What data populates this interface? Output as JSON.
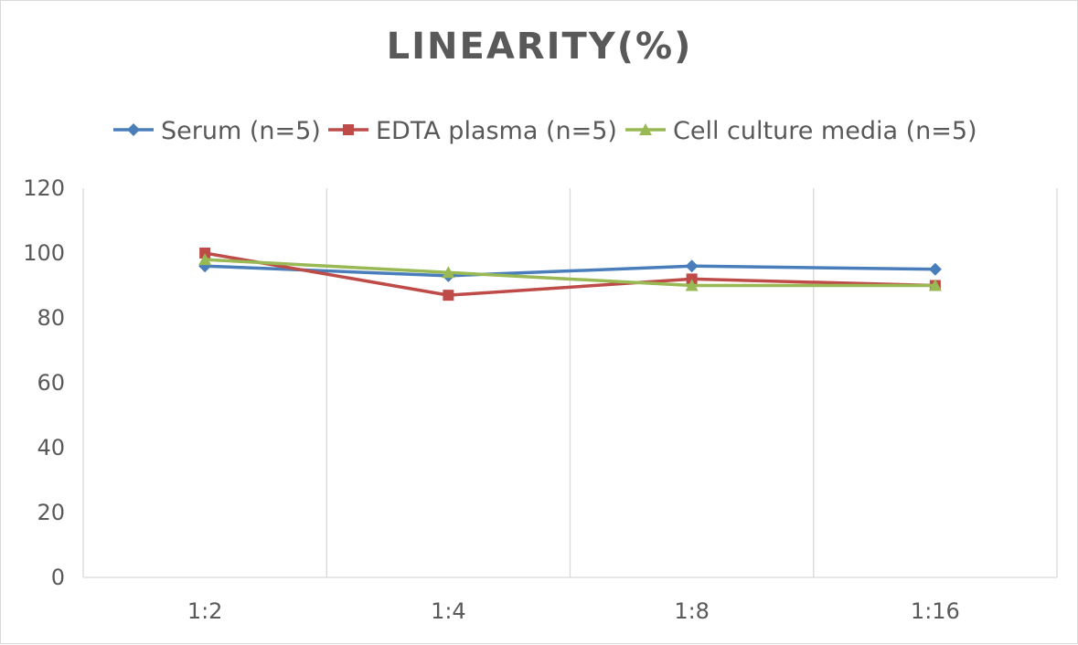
{
  "chart_data": {
    "type": "line",
    "title": "LINEARITY(%)",
    "xlabel": "",
    "ylabel": "",
    "categories": [
      "1:2",
      "1:4",
      "1:8",
      "1:16"
    ],
    "ylim": [
      0,
      120
    ],
    "yticks": [
      0,
      20,
      40,
      60,
      80,
      100,
      120
    ],
    "grid": "vertical",
    "legend": "top",
    "series": [
      {
        "name": "Serum (n=5)",
        "color": "#4a7ebb",
        "marker": "diamond",
        "values": [
          96,
          93,
          96,
          95
        ]
      },
      {
        "name": "EDTA plasma (n=5)",
        "color": "#be4b48",
        "marker": "square",
        "values": [
          100,
          87,
          92,
          90
        ]
      },
      {
        "name": "Cell culture media (n=5)",
        "color": "#98b954",
        "marker": "triangle",
        "values": [
          98,
          94,
          90,
          90
        ]
      }
    ]
  }
}
